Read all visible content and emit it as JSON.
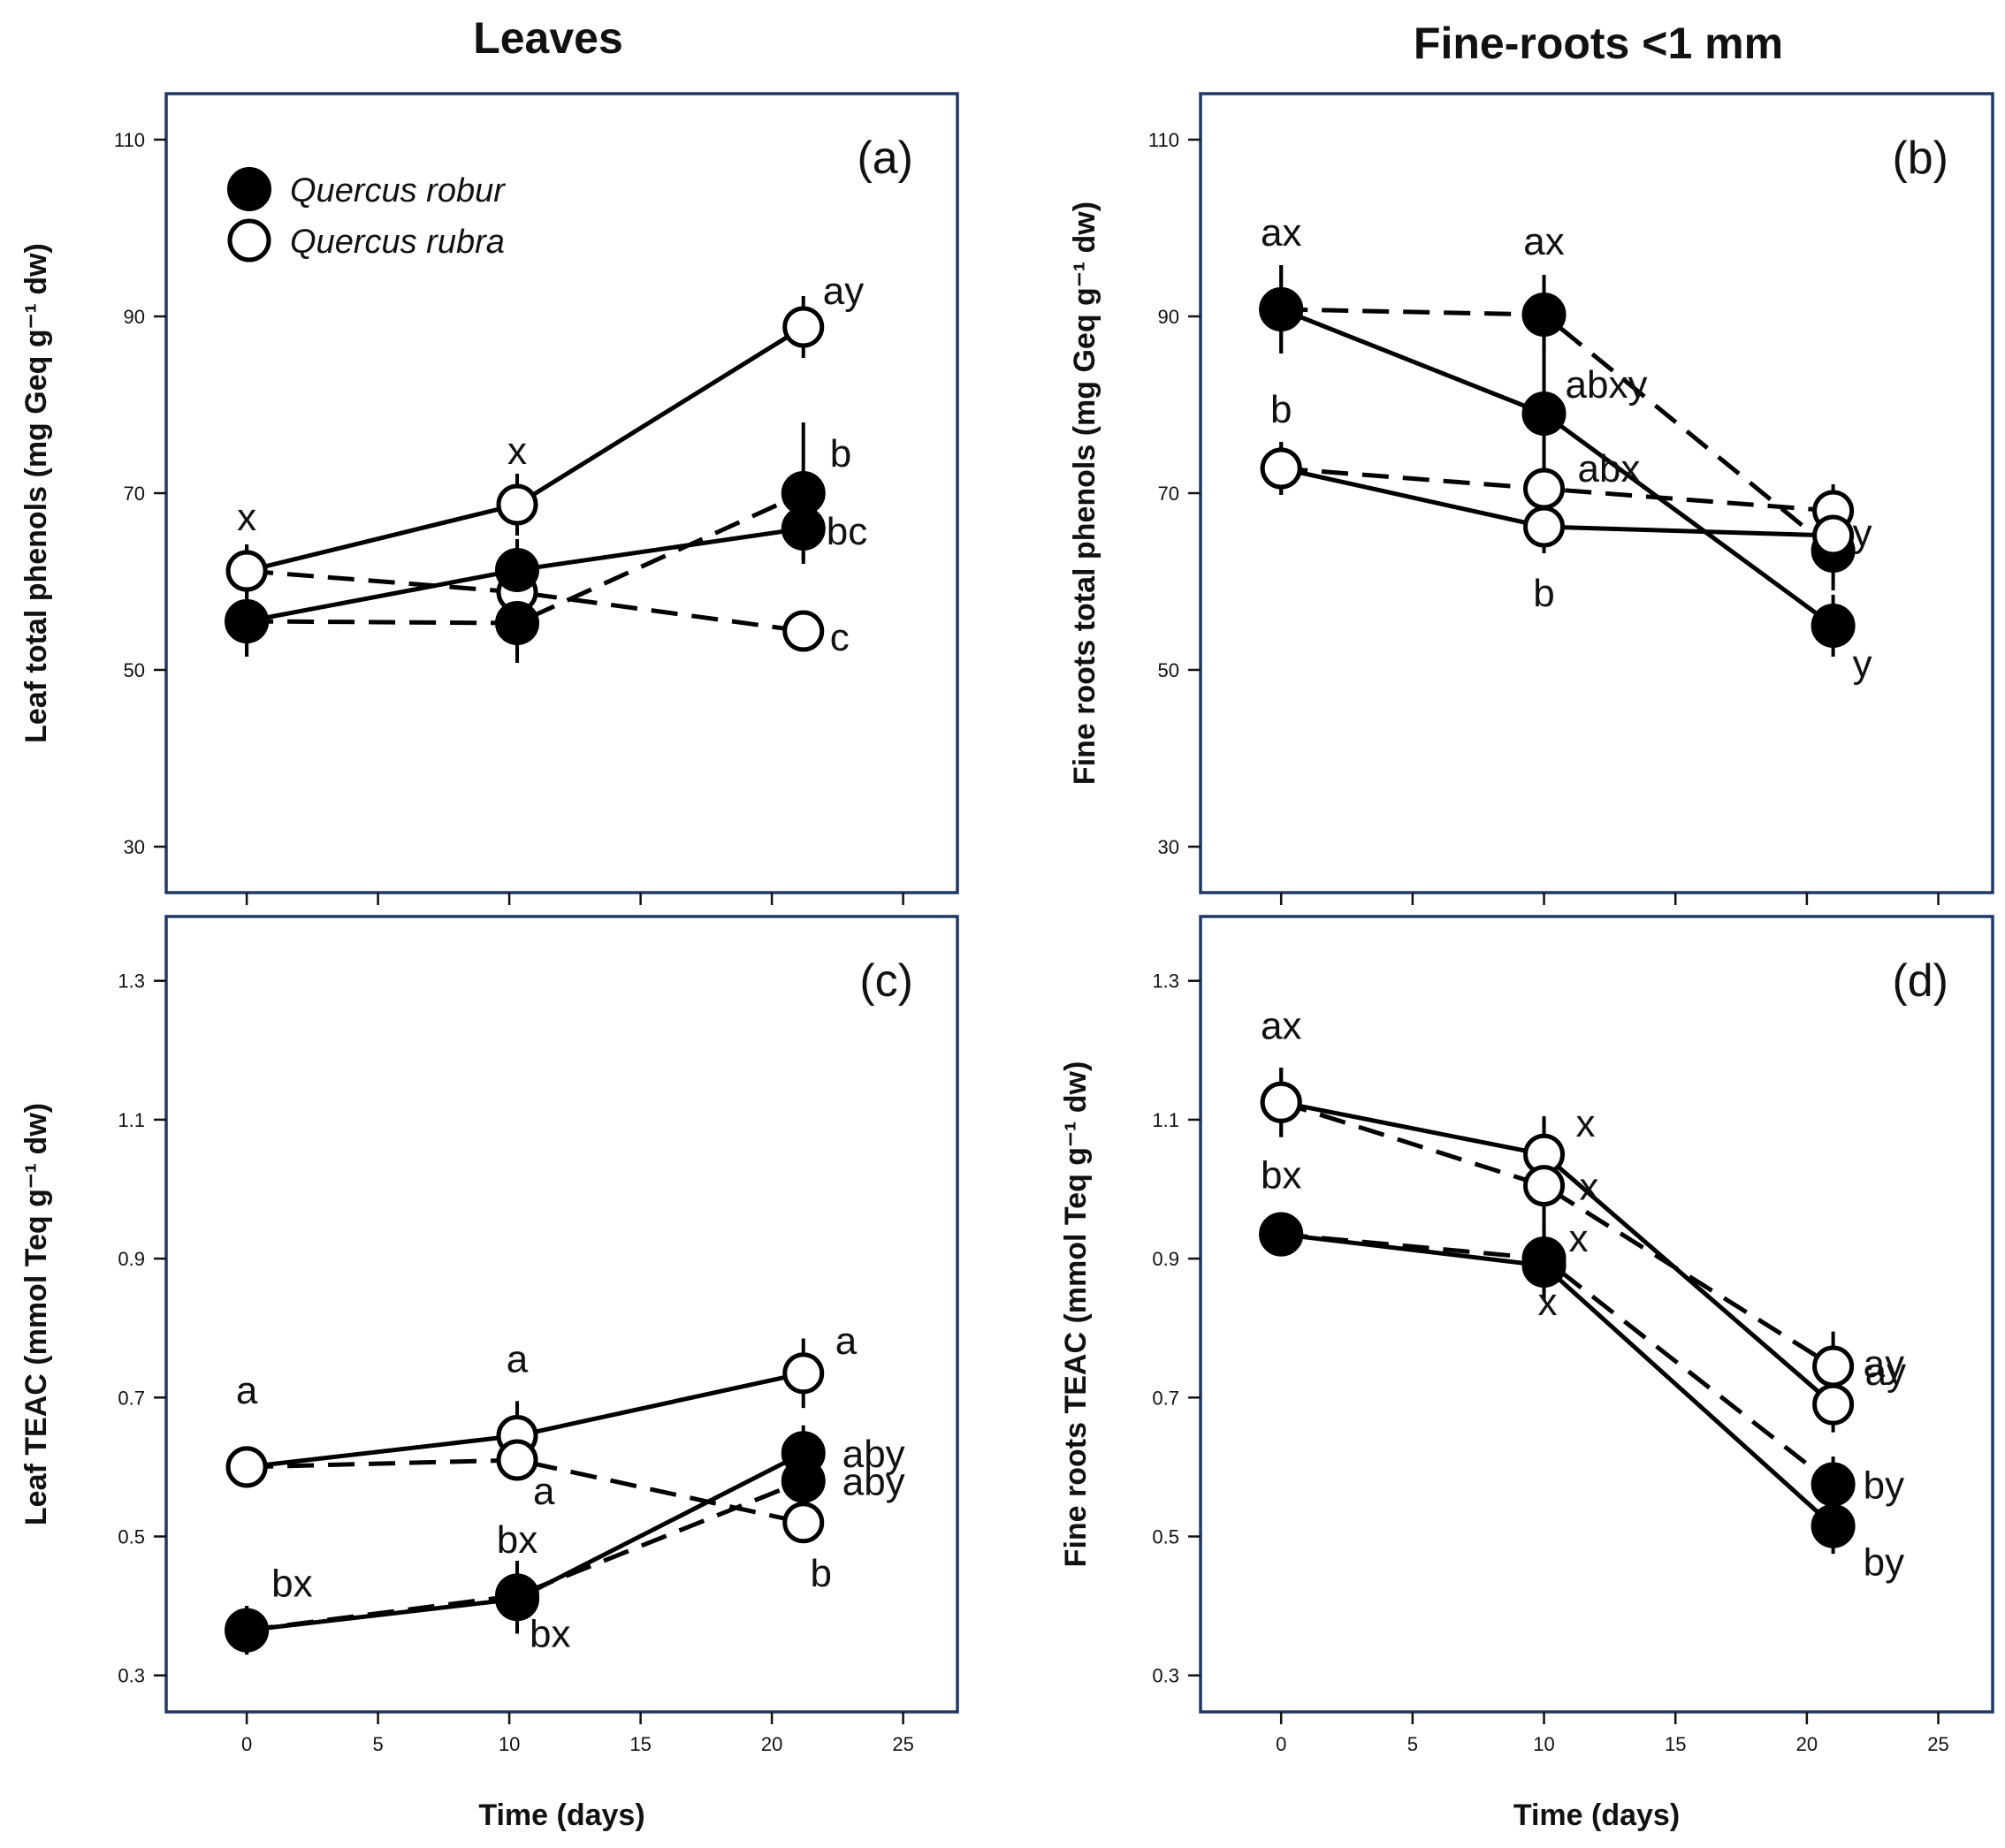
{
  "column_titles": {
    "left": "Leaves",
    "right": "Fine-roots <1 mm"
  },
  "legend": {
    "filled": "Quercus robur",
    "open": "Quercus rubra"
  },
  "chart_data": [
    {
      "type": "line",
      "panel_label": "(a)",
      "xlabel": "",
      "ylabel": "Leaf total phenols (mg Geq g⁻¹ dw)",
      "ylim": [
        25,
        115
      ],
      "xlim": [
        -3,
        27
      ],
      "yticks": [
        30,
        50,
        70,
        90,
        110
      ],
      "xticks": [
        0,
        5,
        10,
        15,
        20,
        25
      ],
      "xtick_labels_visible": false,
      "series": [
        {
          "name": "Quercus rubra solid",
          "marker": "open",
          "line": "solid",
          "x": [
            0,
            10.3,
            21.2
          ],
          "y": [
            61.2,
            68.7,
            88.8
          ],
          "err": [
            3.0,
            3.5,
            3.5
          ],
          "labels": [
            "x",
            "x",
            "ay"
          ]
        },
        {
          "name": "Quercus rubra dashed",
          "marker": "open",
          "line": "dashed",
          "x": [
            0,
            10.3,
            21.2
          ],
          "y": [
            61.2,
            58.8,
            54.4
          ],
          "err": [
            3.0,
            2.5,
            2.0
          ],
          "labels": [
            "",
            "",
            "c"
          ]
        },
        {
          "name": "Quercus robur solid",
          "marker": "filled",
          "line": "solid",
          "x": [
            0,
            10.3,
            21.2
          ],
          "y": [
            55.5,
            61.3,
            66.0
          ],
          "err": [
            4.0,
            3.5,
            3.5
          ],
          "labels": [
            "",
            "",
            "bc"
          ]
        },
        {
          "name": "Quercus robur dashed",
          "marker": "filled",
          "line": "dashed",
          "x": [
            0,
            10.3,
            21.2
          ],
          "y": [
            55.5,
            55.3,
            70.0
          ],
          "err": [
            4.0,
            4.5,
            8.0
          ],
          "labels": [
            "",
            "",
            "b"
          ]
        }
      ]
    },
    {
      "type": "line",
      "panel_label": "(b)",
      "xlabel": "",
      "ylabel": "Fine roots total phenols (mg Geq g⁻¹ dw)",
      "ylim": [
        25,
        115
      ],
      "xlim": [
        -3,
        27
      ],
      "yticks": [
        30,
        50,
        70,
        90,
        110
      ],
      "xticks": [
        0,
        5,
        10,
        15,
        20,
        25
      ],
      "xtick_labels_visible": false,
      "series": [
        {
          "name": "Quercus robur dashed",
          "marker": "filled",
          "line": "dashed",
          "x": [
            0,
            10,
            21
          ],
          "y": [
            90.8,
            90.2,
            63.5
          ],
          "err": [
            5.0,
            4.5,
            4.5
          ],
          "labels": [
            "ax",
            "ax",
            ""
          ]
        },
        {
          "name": "Quercus robur solid",
          "marker": "filled",
          "line": "solid",
          "x": [
            0,
            10,
            21
          ],
          "y": [
            90.8,
            79.0,
            55.0
          ],
          "err": [
            5.0,
            11.0,
            3.5
          ],
          "labels": [
            "",
            "abxy",
            "y"
          ]
        },
        {
          "name": "Quercus rubra dashed",
          "marker": "open",
          "line": "dashed",
          "x": [
            0,
            10,
            21
          ],
          "y": [
            72.8,
            70.5,
            68.0
          ],
          "err": [
            3.0,
            3.0,
            3.0
          ],
          "labels": [
            "b",
            "abx",
            ""
          ]
        },
        {
          "name": "Quercus rubra solid",
          "marker": "open",
          "line": "solid",
          "x": [
            0,
            10,
            21
          ],
          "y": [
            72.8,
            66.2,
            65.2
          ],
          "err": [
            3.0,
            3.0,
            3.0
          ],
          "labels": [
            "",
            "b",
            "y"
          ]
        }
      ]
    },
    {
      "type": "line",
      "panel_label": "(c)",
      "xlabel": "Time (days)",
      "ylabel": "Leaf TEAC (mmol Teq g⁻¹ dw)",
      "ylim": [
        0.25,
        1.39
      ],
      "xlim": [
        -3,
        27
      ],
      "yticks": [
        0.3,
        0.5,
        0.7,
        0.9,
        1.1,
        1.3
      ],
      "xticks": [
        0,
        5,
        10,
        15,
        20,
        25
      ],
      "xtick_labels_visible": true,
      "series": [
        {
          "name": "Quercus rubra solid",
          "marker": "open",
          "line": "solid",
          "x": [
            0,
            10.3,
            21.2
          ],
          "y": [
            0.6,
            0.645,
            0.735
          ],
          "err": [
            0.02,
            0.05,
            0.05
          ],
          "labels": [
            "a",
            "a",
            "a"
          ]
        },
        {
          "name": "Quercus rubra dashed",
          "marker": "open",
          "line": "dashed",
          "x": [
            0,
            10.3,
            21.2
          ],
          "y": [
            0.6,
            0.61,
            0.52
          ],
          "err": [
            0.02,
            0.02,
            0.02
          ],
          "labels": [
            "",
            "a",
            "b"
          ]
        },
        {
          "name": "Quercus robur solid",
          "marker": "filled",
          "line": "solid",
          "x": [
            0,
            10.3,
            21.2
          ],
          "y": [
            0.365,
            0.41,
            0.62
          ],
          "err": [
            0.035,
            0.05,
            0.04
          ],
          "labels": [
            "bx",
            "bx",
            "aby"
          ]
        },
        {
          "name": "Quercus robur dashed",
          "marker": "filled",
          "line": "dashed",
          "x": [
            0,
            10.3,
            21.2
          ],
          "y": [
            0.365,
            0.415,
            0.58
          ],
          "err": [
            0.035,
            0.05,
            0.04
          ],
          "labels": [
            "",
            "bx",
            "aby"
          ]
        }
      ]
    },
    {
      "type": "line",
      "panel_label": "(d)",
      "xlabel": "Time (days)",
      "ylabel": "Fine roots TEAC (mmol Teq g⁻¹ dw)",
      "ylim": [
        0.25,
        1.39
      ],
      "xlim": [
        -3,
        27
      ],
      "yticks": [
        0.3,
        0.5,
        0.7,
        0.9,
        1.1,
        1.3
      ],
      "xticks": [
        0,
        5,
        10,
        15,
        20,
        25
      ],
      "xtick_labels_visible": true,
      "series": [
        {
          "name": "Quercus rubra solid",
          "marker": "open",
          "line": "solid",
          "x": [
            0,
            10,
            21
          ],
          "y": [
            1.125,
            1.05,
            0.69
          ],
          "err": [
            0.05,
            0.05,
            0.04
          ],
          "labels": [
            "ax",
            "x",
            "ay"
          ]
        },
        {
          "name": "Quercus rubra dashed",
          "marker": "open",
          "line": "dashed",
          "x": [
            0,
            10,
            21
          ],
          "y": [
            1.125,
            1.005,
            0.745
          ],
          "err": [
            0.05,
            0.1,
            0.05
          ],
          "labels": [
            "",
            "x",
            "ay"
          ]
        },
        {
          "name": "Quercus robur dashed",
          "marker": "filled",
          "line": "dashed",
          "x": [
            0,
            10,
            21
          ],
          "y": [
            0.935,
            0.9,
            0.575
          ],
          "err": [
            0.03,
            0.05,
            0.04
          ],
          "labels": [
            "bx",
            "x",
            "by"
          ]
        },
        {
          "name": "Quercus robur solid",
          "marker": "filled",
          "line": "solid",
          "x": [
            0,
            10,
            21
          ],
          "y": [
            0.935,
            0.89,
            0.515
          ],
          "err": [
            0.03,
            0.05,
            0.04
          ],
          "labels": [
            "",
            "x",
            "by"
          ]
        }
      ]
    }
  ]
}
